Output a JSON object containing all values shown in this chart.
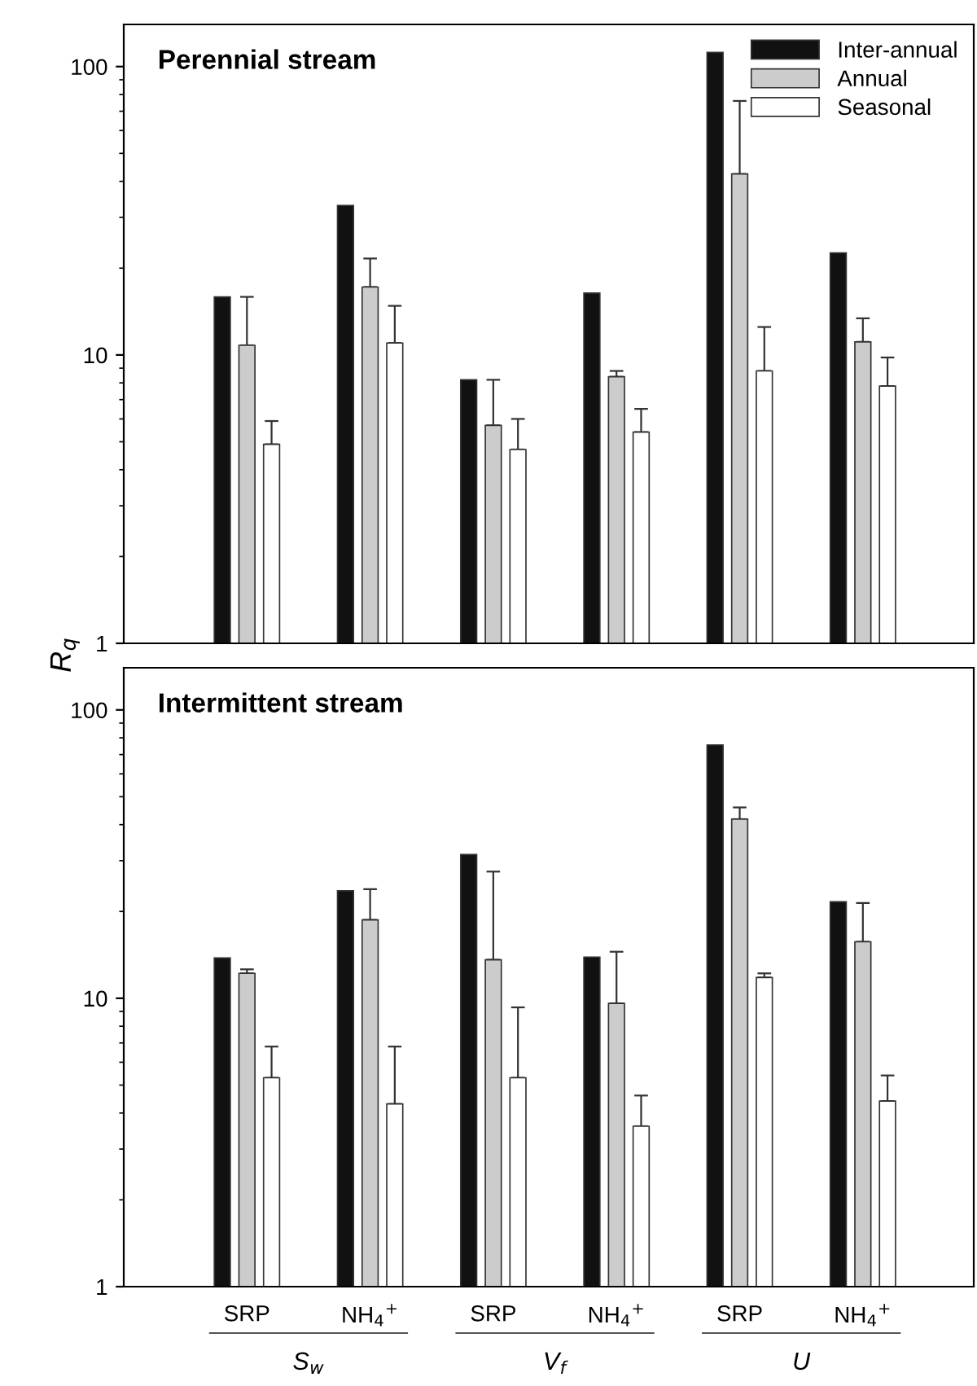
{
  "chart_data": [
    {
      "type": "bar",
      "title": "Perennial stream",
      "ylabel": "R$_{q}$",
      "log": "y",
      "ylim": [
        1,
        140
      ],
      "yticks": [
        1,
        10,
        100
      ],
      "tick_labels": "y",
      "legend": "top right",
      "grid": false,
      "categories": [
        null,
        null,
        null,
        null,
        null,
        null
      ],
      "series": [
        {
          "name": "Inter-annual",
          "color": "#111111",
          "values": [
            15.9,
            33,
            8.2,
            16.4,
            112,
            22.6
          ]
        },
        {
          "name": "Annual",
          "color": "#cccccc",
          "values": [
            10.8,
            17.2,
            5.7,
            8.4,
            42.4,
            11.1
          ],
          "errors": [
            [
              10.8,
              15.9
            ],
            [
              17.2,
              21.6
            ],
            [
              5.7,
              8.2
            ],
            [
              8.4,
              8.8
            ],
            [
              42.4,
              76
            ],
            [
              11.1,
              13.4
            ]
          ]
        },
        {
          "name": "Seasonal",
          "color": "#ffffff",
          "values": [
            4.9,
            11.0,
            4.7,
            5.4,
            8.8,
            7.8
          ],
          "errors": [
            [
              4.9,
              5.9
            ],
            [
              11.0,
              14.8
            ],
            [
              4.7,
              6.0
            ],
            [
              5.4,
              6.5
            ],
            [
              8.8,
              12.5
            ],
            [
              7.8,
              9.8
            ]
          ]
        }
      ]
    },
    {
      "type": "bar",
      "title": "Intermittent stream",
      "log": "y",
      "ylim": [
        1,
        140
      ],
      "yticks": [
        1,
        10,
        100
      ],
      "grid": false,
      "categories": [
        "SRP",
        "NH$_{4}$$^{+}$",
        "SRP",
        "NH$_{4}$$^{+}$",
        "SRP",
        "NH$_{4}$$^{+}$"
      ],
      "annotations": [
        "S$_{w}$",
        "V$_{f}$",
        "U"
      ],
      "series": [
        {
          "color": "#111111",
          "values": [
            13.8,
            23.6,
            31.5,
            13.9,
            75.6,
            21.6
          ]
        },
        {
          "color": "#cccccc",
          "values": [
            12.2,
            18.7,
            13.6,
            9.6,
            41.8,
            15.7
          ],
          "errors": [
            [
              12.2,
              12.6
            ],
            [
              18.7,
              23.9
            ],
            [
              13.6,
              27.5
            ],
            [
              9.6,
              14.5
            ],
            [
              41.8,
              45.9
            ],
            [
              15.7,
              21.4
            ]
          ]
        },
        {
          "color": "#ffffff",
          "values": [
            5.3,
            4.3,
            5.3,
            3.6,
            11.8,
            4.4
          ],
          "errors": [
            [
              5.3,
              6.8
            ],
            [
              4.3,
              6.8
            ],
            [
              5.3,
              9.3
            ],
            [
              3.6,
              4.6
            ],
            [
              11.8,
              12.2
            ],
            [
              4.4,
              5.4
            ]
          ]
        }
      ]
    }
  ]
}
